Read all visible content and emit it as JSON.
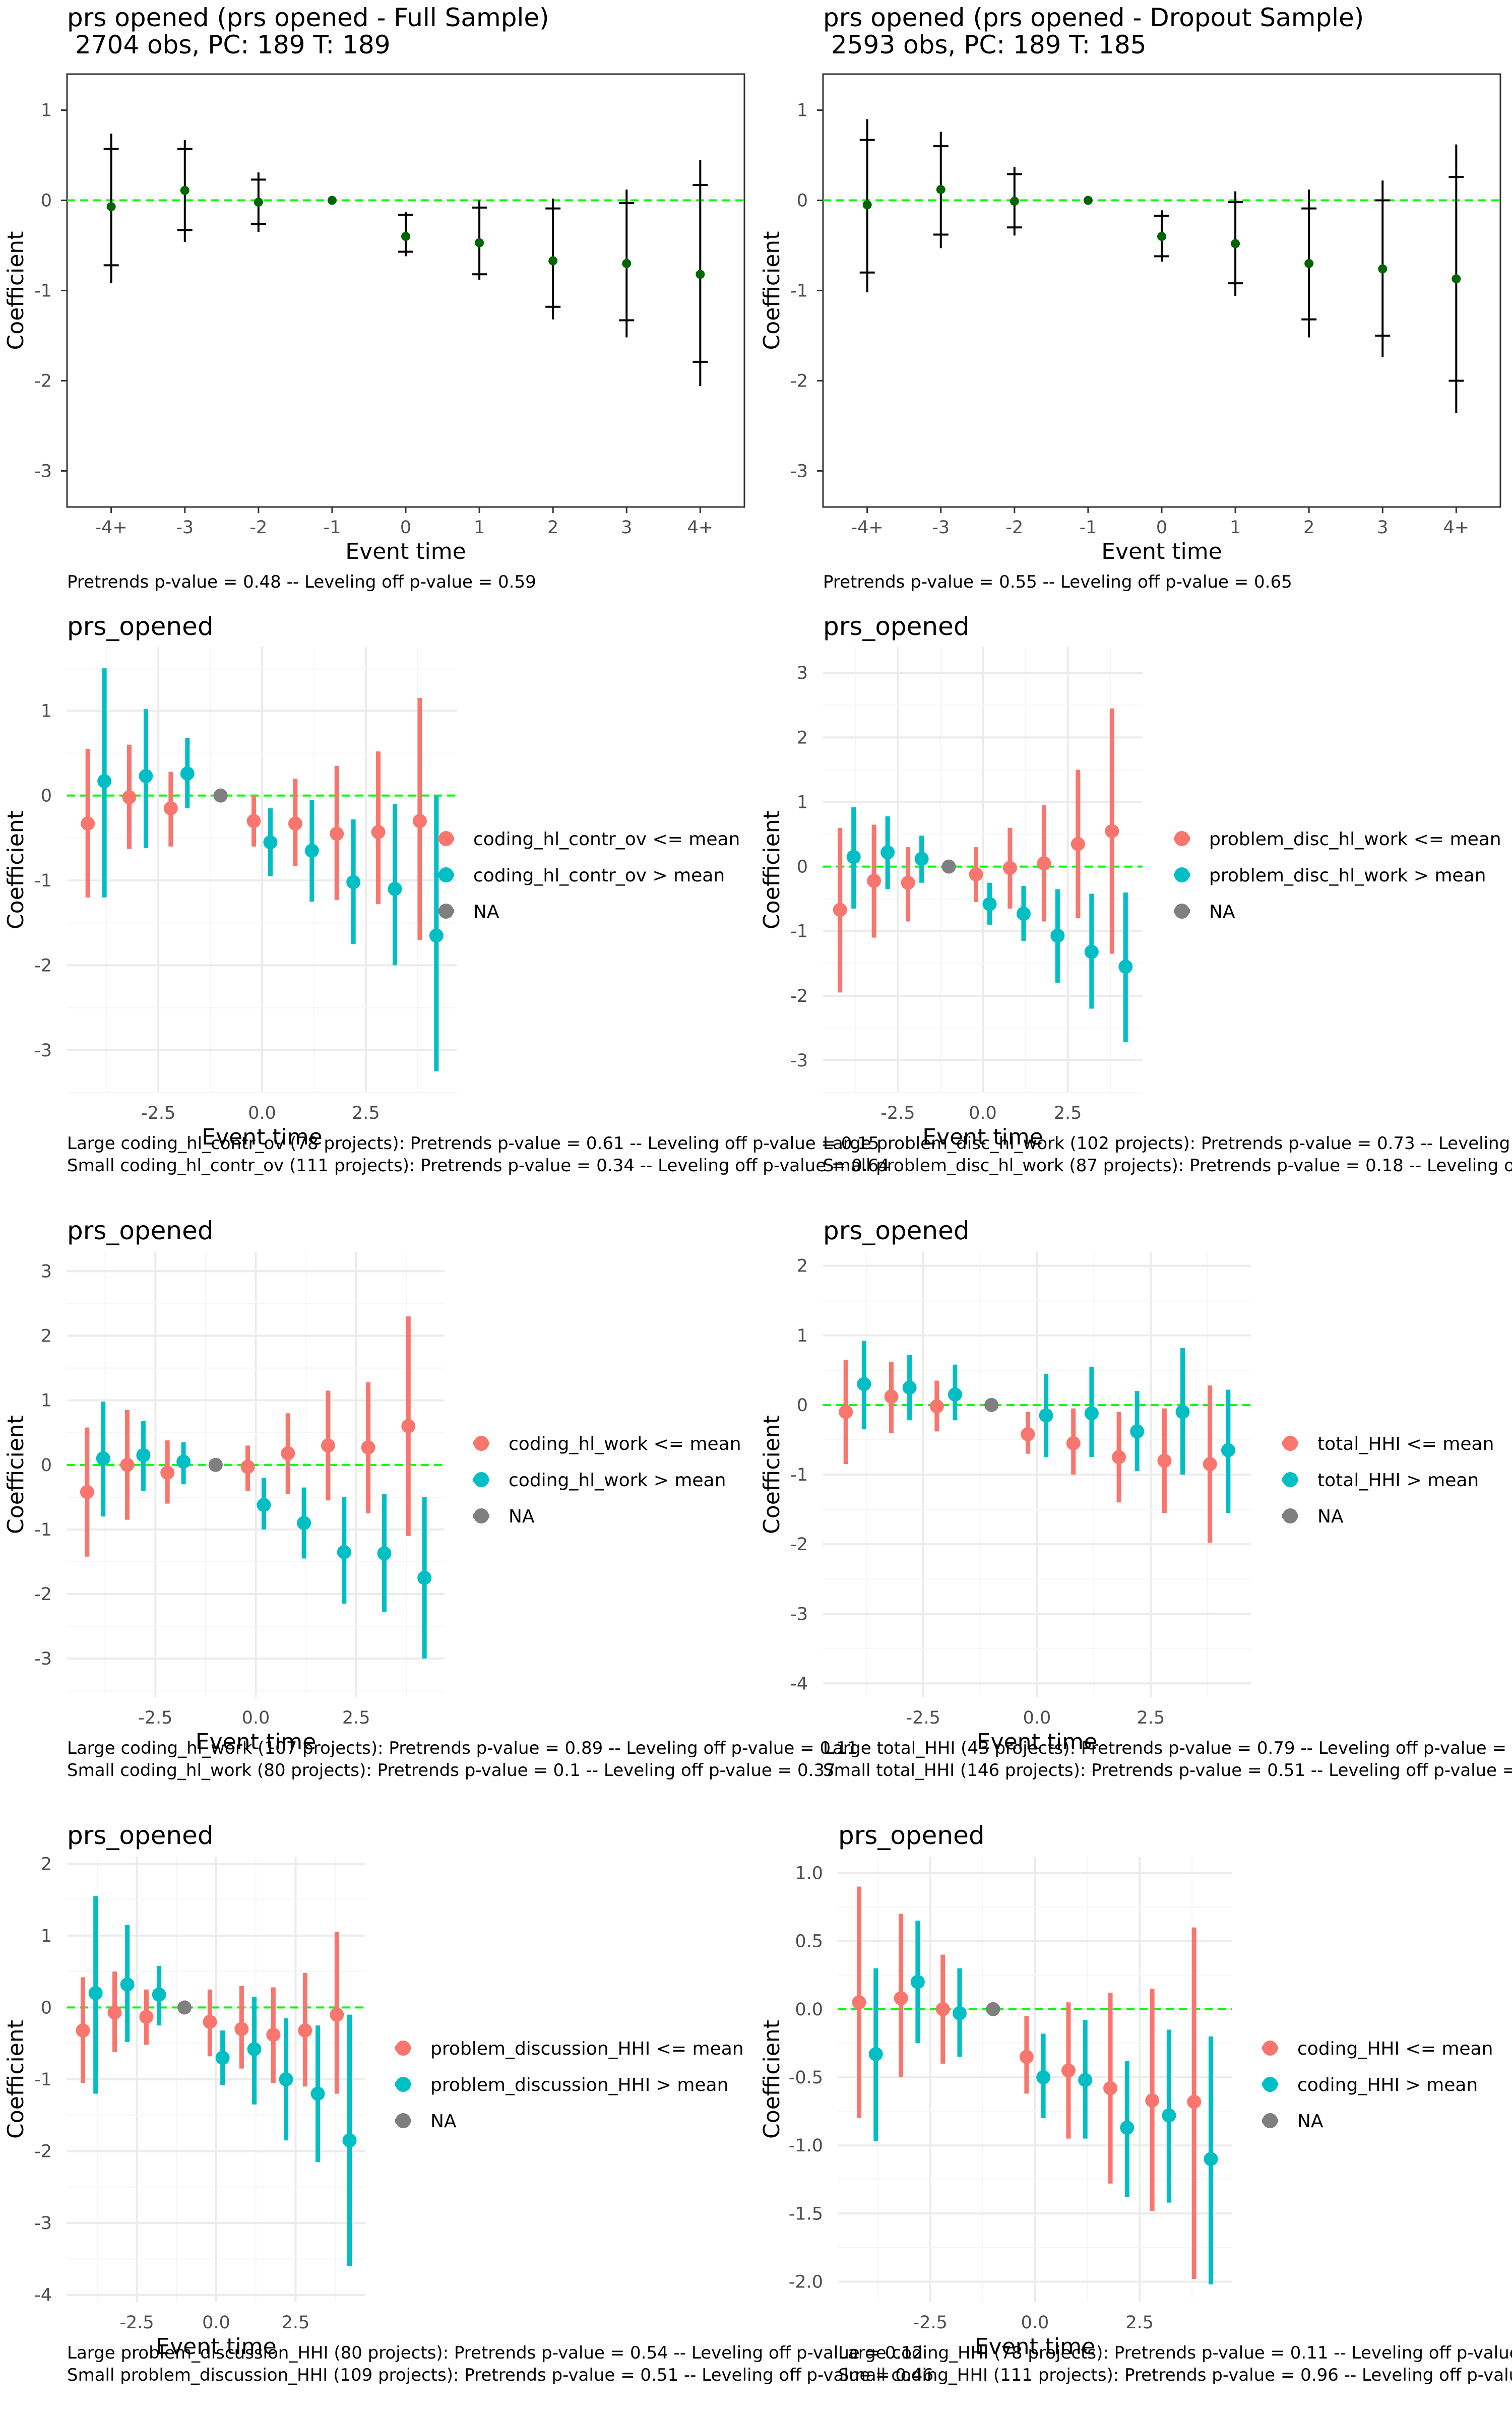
{
  "figure": {
    "colors": {
      "low": "#F8766D",
      "high": "#00BFC4",
      "na": "#7F7F7F",
      "point": "#006400",
      "zero_line": "#00FF00",
      "whisker": "#000000",
      "grid_major": "#EBEBEB",
      "grid_minor": "#F5F5F5",
      "panel_border": "#333333",
      "text": "#000000",
      "tick_text": "#4D4D4D"
    }
  },
  "chart_data": [
    {
      "type": "scatter",
      "subtype": "event-study-errorbar",
      "title": "prs opened (prs opened - Full Sample)",
      "subtitle": " 2704 obs, PC: 189 T: 189",
      "xlabel": "Event time",
      "ylabel": "Coefficient",
      "categories": [
        "-4+",
        "-3",
        "-2",
        "-1",
        "0",
        "1",
        "2",
        "3",
        "4+"
      ],
      "ylim": [
        -3.4,
        1.4
      ],
      "yticks": [
        -3,
        -2,
        -1,
        0,
        1
      ],
      "grid": false,
      "reference_line": 0,
      "series": [
        {
          "values": [
            -0.07,
            0.11,
            -0.02,
            0.0,
            -0.4,
            -0.47,
            -0.67,
            -0.7,
            -0.82
          ],
          "ci95_low": [
            -0.92,
            -0.46,
            -0.35,
            0.0,
            -0.62,
            -0.88,
            -1.32,
            -1.52,
            -2.06
          ],
          "ci95_high": [
            0.74,
            0.67,
            0.31,
            0.0,
            -0.13,
            0.0,
            0.02,
            0.12,
            0.45
          ],
          "ci90_low": [
            -0.72,
            -0.33,
            -0.26,
            0.0,
            -0.57,
            -0.82,
            -1.18,
            -1.33,
            -1.79
          ],
          "ci90_high": [
            0.57,
            0.57,
            0.23,
            0.0,
            -0.16,
            -0.08,
            -0.09,
            -0.03,
            0.17
          ]
        }
      ],
      "footnotes": [
        "Pretrends p-value = 0.48 -- Leveling off p-value = 0.59"
      ]
    },
    {
      "type": "scatter",
      "subtype": "event-study-errorbar",
      "title": "prs opened (prs opened - Dropout Sample)",
      "subtitle": " 2593 obs, PC: 189 T: 185",
      "xlabel": "Event time",
      "ylabel": "Coefficient",
      "categories": [
        "-4+",
        "-3",
        "-2",
        "-1",
        "0",
        "1",
        "2",
        "3",
        "4+"
      ],
      "ylim": [
        -3.4,
        1.4
      ],
      "yticks": [
        -3,
        -2,
        -1,
        0,
        1
      ],
      "grid": false,
      "reference_line": 0,
      "series": [
        {
          "values": [
            -0.05,
            0.12,
            -0.01,
            0.0,
            -0.4,
            -0.48,
            -0.7,
            -0.76,
            -0.87
          ],
          "ci95_low": [
            -1.02,
            -0.53,
            -0.39,
            0.0,
            -0.68,
            -1.06,
            -1.52,
            -1.74,
            -2.36
          ],
          "ci95_high": [
            0.9,
            0.76,
            0.37,
            0.0,
            -0.11,
            0.1,
            0.12,
            0.22,
            0.62
          ],
          "ci90_low": [
            -0.8,
            -0.38,
            -0.3,
            0.0,
            -0.62,
            -0.92,
            -1.32,
            -1.5,
            -2.0
          ],
          "ci90_high": [
            0.67,
            0.6,
            0.29,
            0.0,
            -0.17,
            -0.02,
            -0.09,
            0.0,
            0.26
          ]
        }
      ],
      "footnotes": [
        "Pretrends p-value = 0.55 -- Leveling off p-value = 0.65"
      ]
    },
    {
      "type": "scatter",
      "subtype": "event-study-pointrange",
      "title": "prs_opened",
      "xlabel": "Event time",
      "ylabel": "Coefficient",
      "x": [
        -4,
        -3,
        -2,
        -1,
        0,
        1,
        2,
        3,
        4
      ],
      "xlim": [
        -4.7,
        4.7
      ],
      "xticks": [
        -2.5,
        0.0,
        2.5
      ],
      "xtick_labels": [
        "-2.5",
        "0.0",
        "2.5"
      ],
      "ylim": [
        -3.5,
        1.75
      ],
      "yticks": [
        -3,
        -2,
        -1,
        0,
        1
      ],
      "grid": true,
      "reference_line": 0,
      "legend_position": "right",
      "series": [
        {
          "name": "coding_hl_contr_ov <= mean",
          "color_key": "low",
          "values": [
            -0.33,
            -0.02,
            -0.15,
            null,
            -0.3,
            -0.33,
            -0.45,
            -0.43,
            -0.3
          ],
          "lo": [
            -1.2,
            -0.63,
            -0.6,
            null,
            -0.6,
            -0.83,
            -1.23,
            -1.28,
            -1.7
          ],
          "hi": [
            0.55,
            0.6,
            0.28,
            null,
            0.0,
            0.2,
            0.35,
            0.52,
            1.15
          ]
        },
        {
          "name": "coding_hl_contr_ov > mean",
          "color_key": "high",
          "values": [
            0.17,
            0.23,
            0.26,
            null,
            -0.55,
            -0.65,
            -1.02,
            -1.1,
            -1.65
          ],
          "lo": [
            -1.2,
            -0.62,
            -0.15,
            null,
            -0.95,
            -1.25,
            -1.75,
            -2.0,
            -3.25
          ],
          "hi": [
            1.5,
            1.02,
            0.68,
            null,
            -0.15,
            -0.05,
            -0.28,
            -0.1,
            0.0
          ]
        },
        {
          "name": "NA",
          "color_key": "na",
          "values": [
            null,
            null,
            null,
            0.0,
            null,
            null,
            null,
            null,
            null
          ]
        }
      ],
      "footnotes": [
        "Large coding_hl_contr_ov (78 projects): Pretrends p-value = 0.61 -- Leveling off p-value = 0.15",
        "Small coding_hl_contr_ov (111 projects): Pretrends p-value = 0.34 -- Leveling off p-value = 0.64"
      ]
    },
    {
      "type": "scatter",
      "subtype": "event-study-pointrange",
      "title": "prs_opened",
      "xlabel": "Event time",
      "ylabel": "Coefficient",
      "x": [
        -4,
        -3,
        -2,
        -1,
        0,
        1,
        2,
        3,
        4
      ],
      "xlim": [
        -4.7,
        4.7
      ],
      "xticks": [
        -2.5,
        0.0,
        2.5
      ],
      "xtick_labels": [
        "-2.5",
        "0.0",
        "2.5"
      ],
      "ylim": [
        -3.5,
        3.4
      ],
      "yticks": [
        -3,
        -2,
        -1,
        0,
        1,
        2,
        3
      ],
      "grid": true,
      "reference_line": 0,
      "legend_position": "right",
      "series": [
        {
          "name": "problem_disc_hl_work <= mean",
          "color_key": "low",
          "values": [
            -0.67,
            -0.22,
            -0.25,
            null,
            -0.12,
            -0.02,
            0.05,
            0.35,
            0.55
          ],
          "lo": [
            -1.95,
            -1.1,
            -0.85,
            null,
            -0.55,
            -0.65,
            -0.85,
            -0.8,
            -1.35
          ],
          "hi": [
            0.6,
            0.65,
            0.3,
            null,
            0.3,
            0.6,
            0.95,
            1.5,
            2.45
          ]
        },
        {
          "name": "problem_disc_hl_work > mean",
          "color_key": "high",
          "values": [
            0.15,
            0.22,
            0.12,
            null,
            -0.58,
            -0.73,
            -1.07,
            -1.32,
            -1.55
          ],
          "lo": [
            -0.65,
            -0.35,
            -0.25,
            null,
            -0.9,
            -1.15,
            -1.8,
            -2.2,
            -2.72
          ],
          "hi": [
            0.92,
            0.78,
            0.48,
            null,
            -0.25,
            -0.3,
            -0.35,
            -0.42,
            -0.4
          ]
        },
        {
          "name": "NA",
          "color_key": "na",
          "values": [
            null,
            null,
            null,
            0.0,
            null,
            null,
            null,
            null,
            null
          ]
        }
      ],
      "footnotes": [
        "Large problem_disc_hl_work (102 projects): Pretrends p-value = 0.73 -- Leveling o",
        "Small problem_disc_hl_work (87 projects): Pretrends p-value = 0.18 -- Leveling o"
      ]
    },
    {
      "type": "scatter",
      "subtype": "event-study-pointrange",
      "title": "prs_opened",
      "xlabel": "Event time",
      "ylabel": "Coefficient",
      "x": [
        -4,
        -3,
        -2,
        -1,
        0,
        1,
        2,
        3,
        4
      ],
      "xlim": [
        -4.7,
        4.7
      ],
      "xticks": [
        -2.5,
        0.0,
        2.5
      ],
      "xtick_labels": [
        "-2.5",
        "0.0",
        "2.5"
      ],
      "ylim": [
        -3.6,
        3.3
      ],
      "yticks": [
        -3,
        -2,
        -1,
        0,
        1,
        2,
        3
      ],
      "grid": true,
      "reference_line": 0,
      "legend_position": "right",
      "series": [
        {
          "name": "coding_hl_work <= mean",
          "color_key": "low",
          "values": [
            -0.42,
            0.0,
            -0.12,
            null,
            -0.03,
            0.18,
            0.3,
            0.27,
            0.6
          ],
          "lo": [
            -1.42,
            -0.85,
            -0.6,
            null,
            -0.4,
            -0.45,
            -0.55,
            -0.75,
            -1.1
          ],
          "hi": [
            0.58,
            0.85,
            0.38,
            null,
            0.3,
            0.8,
            1.15,
            1.28,
            2.3
          ]
        },
        {
          "name": "coding_hl_work > mean",
          "color_key": "high",
          "values": [
            0.1,
            0.15,
            0.05,
            null,
            -0.62,
            -0.9,
            -1.35,
            -1.37,
            -1.75
          ],
          "lo": [
            -0.8,
            -0.4,
            -0.3,
            null,
            -1.0,
            -1.45,
            -2.15,
            -2.28,
            -3.0
          ],
          "hi": [
            0.98,
            0.68,
            0.35,
            null,
            -0.2,
            -0.35,
            -0.5,
            -0.45,
            -0.5
          ]
        },
        {
          "name": "NA",
          "color_key": "na",
          "values": [
            null,
            null,
            null,
            0.0,
            null,
            null,
            null,
            null,
            null
          ]
        }
      ],
      "footnotes": [
        "Large coding_hl_work (107 projects): Pretrends p-value = 0.89 -- Leveling off p-value = 0.11",
        "Small coding_hl_work (80 projects): Pretrends p-value = 0.1 -- Leveling off p-value = 0.37"
      ]
    },
    {
      "type": "scatter",
      "subtype": "event-study-pointrange",
      "title": "prs_opened",
      "xlabel": "Event time",
      "ylabel": "Coefficient",
      "x": [
        -4,
        -3,
        -2,
        -1,
        0,
        1,
        2,
        3,
        4
      ],
      "xlim": [
        -4.7,
        4.7
      ],
      "xticks": [
        -2.5,
        0.0,
        2.5
      ],
      "xtick_labels": [
        "-2.5",
        "0.0",
        "2.5"
      ],
      "ylim": [
        -4.2,
        2.2
      ],
      "yticks": [
        -4,
        -3,
        -2,
        -1,
        0,
        1,
        2
      ],
      "grid": true,
      "reference_line": 0,
      "legend_position": "right",
      "series": [
        {
          "name": "total_HHI <= mean",
          "color_key": "low",
          "values": [
            -0.1,
            0.12,
            -0.02,
            null,
            -0.42,
            -0.55,
            -0.75,
            -0.8,
            -0.85
          ],
          "lo": [
            -0.85,
            -0.4,
            -0.38,
            null,
            -0.7,
            -1.0,
            -1.4,
            -1.55,
            -1.98
          ],
          "hi": [
            0.65,
            0.62,
            0.35,
            null,
            -0.1,
            -0.05,
            -0.1,
            -0.05,
            0.28
          ]
        },
        {
          "name": "total_HHI > mean",
          "color_key": "high",
          "values": [
            0.3,
            0.25,
            0.15,
            null,
            -0.15,
            -0.12,
            -0.38,
            -0.1,
            -0.65
          ],
          "lo": [
            -0.35,
            -0.22,
            -0.22,
            null,
            -0.75,
            -0.75,
            -0.95,
            -1.0,
            -1.55
          ],
          "hi": [
            0.92,
            0.72,
            0.58,
            null,
            0.45,
            0.55,
            0.2,
            0.82,
            0.22
          ]
        },
        {
          "name": "NA",
          "color_key": "na",
          "values": [
            null,
            null,
            null,
            0.0,
            null,
            null,
            null,
            null,
            null
          ]
        }
      ],
      "footnotes": [
        "Large total_HHI (43 projects): Pretrends p-value = 0.79 -- Leveling off p-value = 0",
        "Small total_HHI (146 projects): Pretrends p-value = 0.51 -- Leveling off p-value = 0"
      ]
    },
    {
      "type": "scatter",
      "subtype": "event-study-pointrange",
      "title": "prs_opened",
      "xlabel": "Event time",
      "ylabel": "Coefficient",
      "x": [
        -4,
        -3,
        -2,
        -1,
        0,
        1,
        2,
        3,
        4
      ],
      "xlim": [
        -4.7,
        4.7
      ],
      "xticks": [
        -2.5,
        0.0,
        2.5
      ],
      "xtick_labels": [
        "-2.5",
        "0.0",
        "2.5"
      ],
      "ylim": [
        -4.1,
        2.1
      ],
      "yticks": [
        -4,
        -3,
        -2,
        -1,
        0,
        1,
        2
      ],
      "grid": true,
      "reference_line": 0,
      "legend_position": "right",
      "series": [
        {
          "name": "problem_discussion_HHI <= mean",
          "color_key": "low",
          "values": [
            -0.32,
            -0.07,
            -0.13,
            null,
            -0.2,
            -0.3,
            -0.38,
            -0.32,
            -0.1
          ],
          "lo": [
            -1.05,
            -0.62,
            -0.52,
            null,
            -0.68,
            -0.85,
            -1.05,
            -1.1,
            -1.2
          ],
          "hi": [
            0.42,
            0.5,
            0.25,
            null,
            0.25,
            0.3,
            0.28,
            0.48,
            1.05
          ]
        },
        {
          "name": "problem_discussion_HHI > mean",
          "color_key": "high",
          "values": [
            0.2,
            0.32,
            0.18,
            null,
            -0.7,
            -0.58,
            -1.0,
            -1.2,
            -1.85
          ],
          "lo": [
            -1.2,
            -0.48,
            -0.25,
            null,
            -1.08,
            -1.35,
            -1.85,
            -2.15,
            -3.6
          ],
          "hi": [
            1.55,
            1.15,
            0.58,
            null,
            -0.32,
            0.15,
            -0.15,
            -0.25,
            -0.1
          ]
        },
        {
          "name": "NA",
          "color_key": "na",
          "values": [
            null,
            null,
            null,
            0.0,
            null,
            null,
            null,
            null,
            null
          ]
        }
      ],
      "footnotes": [
        "Large problem_discussion_HHI (80 projects): Pretrends p-value = 0.54 -- Leveling off p-value = 0.12",
        "Small problem_discussion_HHI (109 projects): Pretrends p-value = 0.51 -- Leveling off p-value = 0.46"
      ]
    },
    {
      "type": "scatter",
      "subtype": "event-study-pointrange",
      "title": "prs_opened",
      "xlabel": "Event time",
      "ylabel": "Coefficient",
      "x": [
        -4,
        -3,
        -2,
        -1,
        0,
        1,
        2,
        3,
        4
      ],
      "xlim": [
        -4.7,
        4.7
      ],
      "xticks": [
        -2.5,
        0.0,
        2.5
      ],
      "xtick_labels": [
        "-2.5",
        "0.0",
        "2.5"
      ],
      "ylim": [
        -2.15,
        1.12
      ],
      "yticks": [
        -2.0,
        -1.5,
        -1.0,
        -0.5,
        0.0,
        0.5,
        1.0
      ],
      "ytick_labels": [
        "-2.0",
        "-1.5",
        "-1.0",
        "-0.5",
        "0.0",
        "0.5",
        "1.0"
      ],
      "grid": true,
      "reference_line": 0,
      "legend_position": "right",
      "series": [
        {
          "name": "coding_HHI <= mean",
          "color_key": "low",
          "values": [
            0.05,
            0.08,
            0.0,
            null,
            -0.35,
            -0.45,
            -0.58,
            -0.67,
            -0.68
          ],
          "lo": [
            -0.8,
            -0.5,
            -0.4,
            null,
            -0.62,
            -0.95,
            -1.28,
            -1.48,
            -1.98
          ],
          "hi": [
            0.9,
            0.7,
            0.4,
            null,
            -0.05,
            0.05,
            0.12,
            0.15,
            0.6
          ]
        },
        {
          "name": "coding_HHI > mean",
          "color_key": "high",
          "values": [
            -0.33,
            0.2,
            -0.03,
            null,
            -0.5,
            -0.52,
            -0.87,
            -0.78,
            -1.1
          ],
          "lo": [
            -0.97,
            -0.25,
            -0.35,
            null,
            -0.8,
            -0.95,
            -1.38,
            -1.42,
            -2.02
          ],
          "hi": [
            0.3,
            0.65,
            0.3,
            null,
            -0.18,
            -0.08,
            -0.38,
            -0.15,
            -0.2
          ]
        },
        {
          "name": "NA",
          "color_key": "na",
          "values": [
            null,
            null,
            null,
            0.0,
            null,
            null,
            null,
            null,
            null
          ]
        }
      ],
      "footnotes": [
        "Large coding_HHI (78 projects): Pretrends p-value = 0.11 -- Leveling off p-value",
        "Small coding_HHI (111 projects): Pretrends p-value = 0.96 -- Leveling off p-value"
      ]
    }
  ]
}
